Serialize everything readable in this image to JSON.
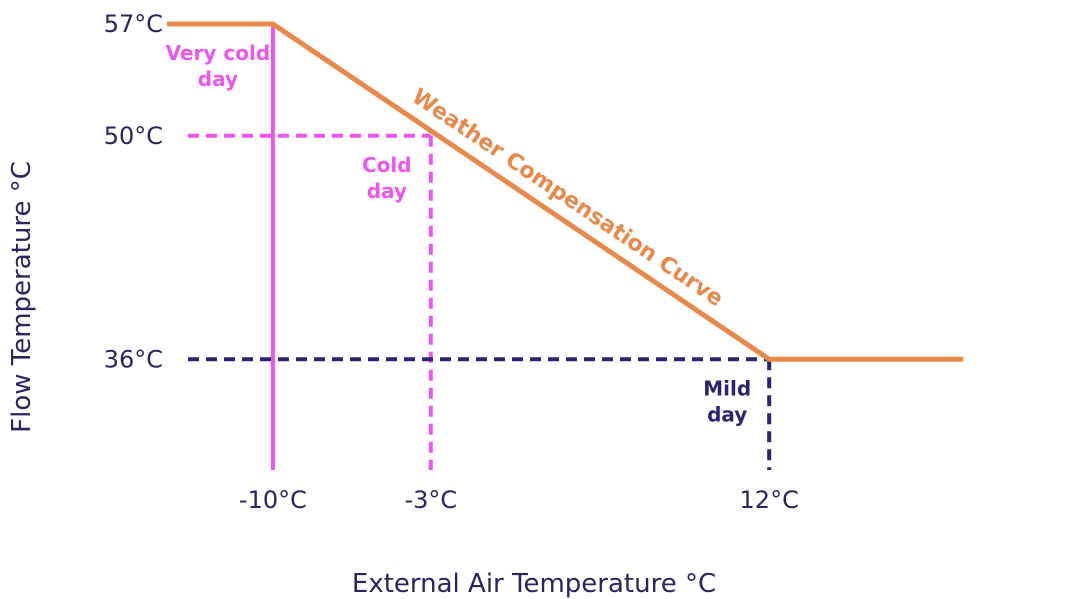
{
  "chart_data": {
    "type": "line",
    "title": "",
    "xlabel": "External Air Temperature °C",
    "ylabel": "Flow Temperature °C",
    "xlim": [
      -17,
      26
    ],
    "ylim": [
      29,
      57
    ],
    "y_ticks": [
      {
        "value": 57,
        "label": "57°C"
      },
      {
        "value": 50,
        "label": "50°C"
      },
      {
        "value": 36,
        "label": "36°C"
      }
    ],
    "x_ticks": [
      {
        "value": -10,
        "label": "-10°C"
      },
      {
        "value": -3,
        "label": "-3°C"
      },
      {
        "value": 12,
        "label": "12°C"
      }
    ],
    "series": [
      {
        "name": "Weather Compensation Curve",
        "color": "#e8884a",
        "points": [
          {
            "x": -14.7,
            "y": 57
          },
          {
            "x": -10,
            "y": 57
          },
          {
            "x": 12,
            "y": 36
          },
          {
            "x": 20.6,
            "y": 36
          }
        ]
      }
    ],
    "reference_lines": [
      {
        "id": "very-cold",
        "color": "#ee55ee",
        "style": "solid",
        "x": -10,
        "y": 57,
        "label_lines": [
          "Very cold",
          "day"
        ]
      },
      {
        "id": "cold",
        "color": "#ee55ee",
        "style": "dashed",
        "x": -3,
        "y": 50,
        "label_lines": [
          "Cold",
          "day"
        ]
      },
      {
        "id": "mild",
        "color": "#2a2472",
        "style": "dashed",
        "x": 12,
        "y": 36,
        "label_lines": [
          "Mild",
          "day"
        ]
      }
    ],
    "grid": false,
    "legend": "none"
  }
}
